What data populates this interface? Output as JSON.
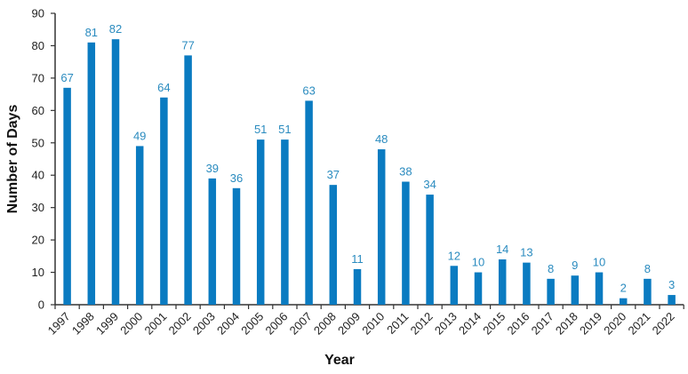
{
  "chart_data": {
    "type": "bar",
    "title": "",
    "xlabel": "Year",
    "ylabel": "Number of Days",
    "ylim": [
      0,
      90
    ],
    "yticks": [
      0,
      10,
      20,
      30,
      40,
      50,
      60,
      70,
      80,
      90
    ],
    "categories": [
      "1997",
      "1998",
      "1999",
      "2000",
      "2001",
      "2002",
      "2003",
      "2004",
      "2005",
      "2006",
      "2007",
      "2008",
      "2009",
      "2010",
      "2011",
      "2012",
      "2013",
      "2014",
      "2015",
      "2016",
      "2017",
      "2018",
      "2019",
      "2020",
      "2021",
      "2022"
    ],
    "values": [
      67,
      81,
      82,
      49,
      64,
      77,
      39,
      36,
      51,
      51,
      63,
      37,
      11,
      48,
      38,
      34,
      12,
      10,
      14,
      13,
      8,
      9,
      10,
      2,
      8,
      3
    ],
    "bar_color": "#0a7bc1",
    "label_color": "#2a8bbf",
    "grid": false
  }
}
